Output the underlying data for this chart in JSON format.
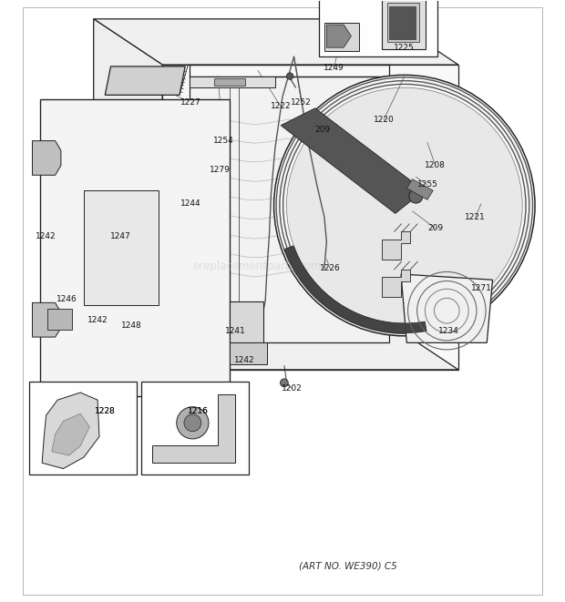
{
  "footer": "(ART NO. WE390) C5",
  "watermark": "ereplacementparts.com",
  "bg_color": "#ffffff",
  "line_color": "#333333",
  "dark": "#222222",
  "gray": "#888888",
  "light_gray": "#cccccc",
  "labels": [
    [
      "1227",
      3.05,
      8.72,
      "center"
    ],
    [
      "1254",
      3.62,
      8.05,
      "center"
    ],
    [
      "1222",
      4.62,
      8.65,
      "center"
    ],
    [
      "1252",
      4.98,
      8.72,
      "center"
    ],
    [
      "1247",
      1.82,
      6.38,
      "center"
    ],
    [
      "1279",
      3.55,
      7.55,
      "center"
    ],
    [
      "1244",
      3.05,
      6.95,
      "center"
    ],
    [
      "1249",
      5.55,
      9.32,
      "center"
    ],
    [
      "1225",
      6.78,
      9.68,
      "center"
    ],
    [
      "209",
      5.35,
      8.25,
      "center"
    ],
    [
      "1220",
      6.42,
      8.42,
      "center"
    ],
    [
      "1208",
      7.32,
      7.62,
      "center"
    ],
    [
      "1255",
      7.18,
      7.28,
      "center"
    ],
    [
      "209",
      7.32,
      6.52,
      "center"
    ],
    [
      "1221",
      8.02,
      6.72,
      "center"
    ],
    [
      "1271",
      8.12,
      5.48,
      "center"
    ],
    [
      "1234",
      7.55,
      4.72,
      "center"
    ],
    [
      "1242",
      0.52,
      6.38,
      "center"
    ],
    [
      "1246",
      0.88,
      5.28,
      "center"
    ],
    [
      "1242",
      1.42,
      4.92,
      "center"
    ],
    [
      "1248",
      2.02,
      4.82,
      "center"
    ],
    [
      "1226",
      5.48,
      5.82,
      "center"
    ],
    [
      "1241",
      3.82,
      4.72,
      "center"
    ],
    [
      "1242",
      3.98,
      4.22,
      "center"
    ],
    [
      "1202",
      4.82,
      3.72,
      "center"
    ],
    [
      "1228",
      1.55,
      3.32,
      "center"
    ],
    [
      "1216",
      3.18,
      3.32,
      "center"
    ]
  ]
}
